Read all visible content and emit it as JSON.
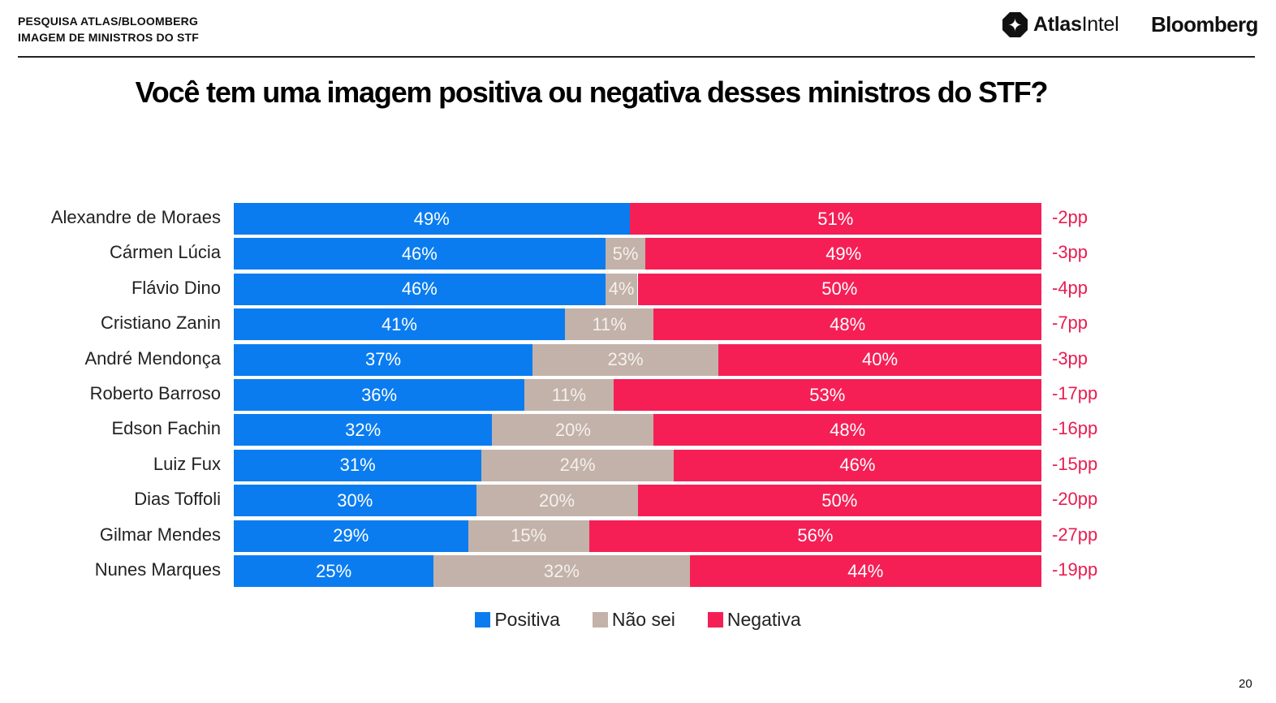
{
  "header": {
    "line1": "PESQUISA ATLAS/BLOOMBERG",
    "line2": "IMAGEM DE MINISTROS DO STF",
    "atlas_bold": "Atlas",
    "atlas_light": "Intel",
    "bloomberg": "Bloomberg"
  },
  "colors": {
    "positiva": "#0a7cf0",
    "nao_sei": "#c3b2a9",
    "negativa": "#f51f55",
    "diff": "#e81d4f"
  },
  "chart_data": {
    "type": "bar",
    "stacked": true,
    "orientation": "horizontal",
    "title": "Você tem uma imagem positiva ou negativa desses ministros do STF?",
    "categories": [
      "Alexandre de Moraes",
      "Cármen Lúcia",
      "Flávio Dino",
      "Cristiano Zanin",
      "André Mendonça",
      "Roberto Barroso",
      "Edson Fachin",
      "Luiz Fux",
      "Dias Toffoli",
      "Gilmar Mendes",
      "Nunes Marques"
    ],
    "series": [
      {
        "name": "Positiva",
        "values": [
          49,
          46,
          46,
          41,
          37,
          36,
          32,
          31,
          30,
          29,
          25
        ]
      },
      {
        "name": "Não sei",
        "values": [
          0,
          5,
          4,
          11,
          23,
          11,
          20,
          24,
          20,
          15,
          32
        ]
      },
      {
        "name": "Negativa",
        "values": [
          51,
          49,
          50,
          48,
          40,
          53,
          48,
          46,
          50,
          56,
          44
        ]
      }
    ],
    "difference_labels": [
      "-2pp",
      "-3pp",
      "-4pp",
      "-7pp",
      "-3pp",
      "-17pp",
      "-16pp",
      "-15pp",
      "-20pp",
      "-27pp",
      "-19pp"
    ],
    "value_suffix": "%",
    "legend_position": "bottom-center"
  },
  "page_number": "20"
}
